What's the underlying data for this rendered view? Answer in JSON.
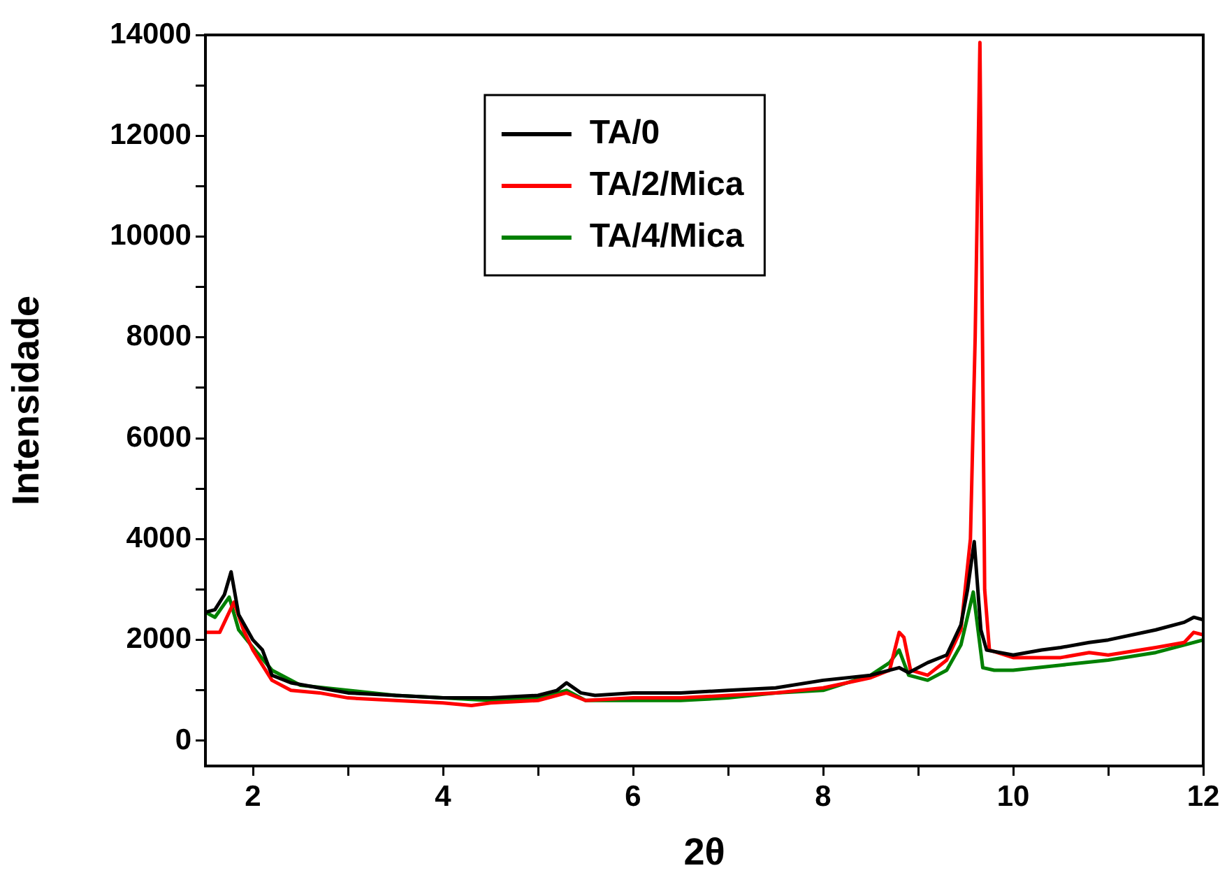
{
  "chart_data": {
    "type": "line",
    "xlabel": "2θ",
    "ylabel": "Intensidade",
    "xlim": [
      1.5,
      12
    ],
    "ylim": [
      -500,
      14000
    ],
    "xticks": [
      2,
      {
        "value": 3,
        "label": null
      },
      4,
      {
        "value": 5,
        "label": null
      },
      6,
      {
        "value": 7,
        "label": null
      },
      8,
      {
        "value": 9,
        "label": null
      },
      10,
      {
        "value": 11,
        "label": null
      },
      12
    ],
    "yticks": [
      0,
      {
        "value": 1000,
        "label": null
      },
      2000,
      {
        "value": 3000,
        "label": null
      },
      4000,
      {
        "value": 5000,
        "label": null
      },
      6000,
      {
        "value": 7000,
        "label": null
      },
      8000,
      {
        "value": 9000,
        "label": null
      },
      10000,
      {
        "value": 11000,
        "label": null
      },
      12000,
      {
        "value": 13000,
        "label": null
      },
      14000
    ],
    "legend": "top",
    "marker": "none",
    "line_style": "solid",
    "series": [
      {
        "name": "TA/0",
        "color": "#000000",
        "x": [
          1.5,
          1.6,
          1.7,
          1.77,
          1.85,
          2.0,
          2.1,
          2.2,
          2.4,
          2.7,
          3.0,
          3.5,
          4.0,
          4.5,
          5.0,
          5.2,
          5.3,
          5.45,
          5.6,
          6.0,
          6.5,
          7.0,
          7.5,
          8.0,
          8.5,
          8.8,
          8.9,
          9.1,
          9.3,
          9.45,
          9.52,
          9.59,
          9.66,
          9.72,
          10.0,
          10.3,
          10.5,
          10.8,
          11.0,
          11.5,
          11.8,
          11.9,
          12.0
        ],
        "values": [
          2550,
          2600,
          2900,
          3350,
          2500,
          2000,
          1800,
          1300,
          1150,
          1050,
          950,
          900,
          850,
          850,
          900,
          1000,
          1150,
          950,
          900,
          950,
          950,
          1000,
          1050,
          1200,
          1300,
          1450,
          1350,
          1550,
          1700,
          2300,
          3000,
          3950,
          2200,
          1800,
          1700,
          1800,
          1850,
          1950,
          2000,
          2200,
          2350,
          2450,
          2400
        ]
      },
      {
        "name": "TA/2/Mica",
        "color": "#ff0000",
        "x": [
          1.5,
          1.65,
          1.8,
          1.9,
          2.0,
          2.2,
          2.4,
          2.7,
          3.0,
          3.5,
          4.0,
          4.3,
          4.5,
          5.0,
          5.3,
          5.5,
          6.0,
          6.5,
          7.0,
          7.5,
          8.0,
          8.5,
          8.7,
          8.8,
          8.85,
          8.92,
          9.1,
          9.3,
          9.45,
          9.55,
          9.6,
          9.65,
          9.7,
          9.75,
          10.0,
          10.5,
          10.8,
          11.0,
          11.5,
          11.8,
          11.9,
          12.0
        ],
        "values": [
          2150,
          2150,
          2750,
          2200,
          1800,
          1200,
          1000,
          950,
          850,
          800,
          750,
          700,
          750,
          800,
          950,
          800,
          850,
          850,
          900,
          950,
          1050,
          1250,
          1400,
          2150,
          2050,
          1400,
          1300,
          1600,
          2200,
          4000,
          8000,
          13850,
          3000,
          1800,
          1650,
          1650,
          1750,
          1700,
          1850,
          1950,
          2150,
          2100
        ]
      },
      {
        "name": "TA/4/Mica",
        "color": "#008000",
        "x": [
          1.5,
          1.6,
          1.75,
          1.85,
          2.0,
          2.2,
          2.5,
          3.0,
          3.5,
          4.0,
          4.5,
          5.0,
          5.3,
          5.5,
          6.0,
          6.5,
          7.0,
          7.5,
          8.0,
          8.5,
          8.7,
          8.8,
          8.9,
          9.1,
          9.3,
          9.45,
          9.58,
          9.68,
          9.8,
          10.0,
          10.5,
          11.0,
          11.5,
          12.0
        ],
        "values": [
          2550,
          2450,
          2850,
          2200,
          1850,
          1400,
          1100,
          1000,
          900,
          850,
          800,
          850,
          1000,
          800,
          800,
          800,
          850,
          950,
          1000,
          1300,
          1550,
          1800,
          1300,
          1200,
          1400,
          1900,
          2950,
          1450,
          1400,
          1400,
          1500,
          1600,
          1750,
          2000
        ]
      }
    ]
  }
}
